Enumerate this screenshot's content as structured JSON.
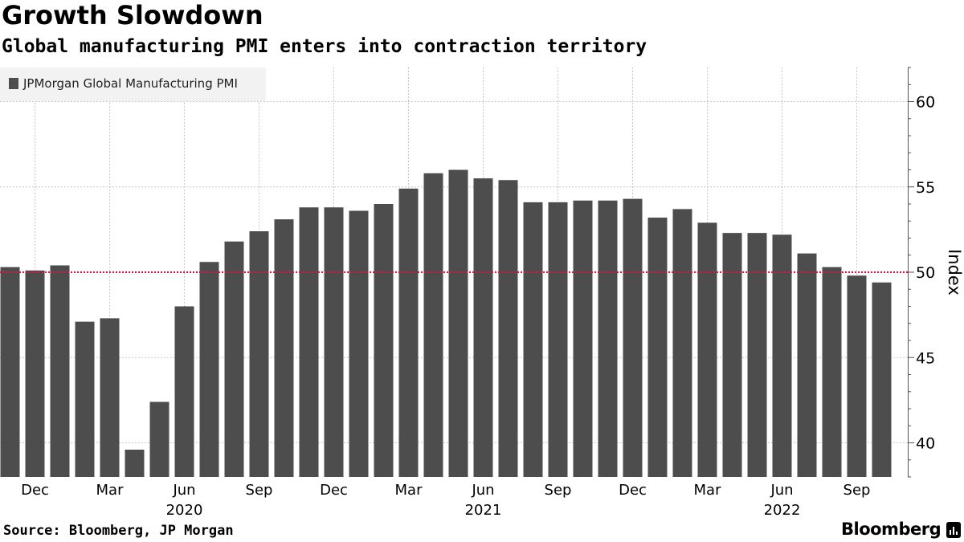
{
  "header": {
    "title": "Growth Slowdown",
    "subtitle": "Global manufacturing PMI enters into contraction territory"
  },
  "footer": {
    "source": "Source: Bloomberg, JP Morgan",
    "brand": "Bloomberg"
  },
  "colors": {
    "bar": "#4d4d4d",
    "reference_line": "#e0143c",
    "grid": "#c8c8c8",
    "legend_bg": "#f2f2f2"
  },
  "chart_data": {
    "type": "bar",
    "ylabel": "Index",
    "ylim": [
      38,
      62
    ],
    "yticks": [
      40,
      45,
      50,
      55,
      60
    ],
    "y_axis_side": "right",
    "grid": true,
    "legend_position": "top-left",
    "reference_line": {
      "value": 50,
      "style": "dotted"
    },
    "series": [
      {
        "name": "JPMorgan Global Manufacturing PMI",
        "periods": [
          "Nov 2019",
          "Dec 2019",
          "Jan 2020",
          "Feb 2020",
          "Mar 2020",
          "Apr 2020",
          "May 2020",
          "Jun 2020",
          "Jul 2020",
          "Aug 2020",
          "Sep 2020",
          "Oct 2020",
          "Nov 2020",
          "Dec 2020",
          "Jan 2021",
          "Feb 2021",
          "Mar 2021",
          "Apr 2021",
          "May 2021",
          "Jun 2021",
          "Jul 2021",
          "Aug 2021",
          "Sep 2021",
          "Oct 2021",
          "Nov 2021",
          "Dec 2021",
          "Jan 2022",
          "Feb 2022",
          "Mar 2022",
          "Apr 2022",
          "May 2022",
          "Jun 2022",
          "Jul 2022",
          "Aug 2022",
          "Sep 2022",
          "Oct 2022"
        ],
        "values": [
          50.3,
          50.1,
          50.4,
          47.1,
          47.3,
          39.6,
          42.4,
          48.0,
          50.6,
          51.8,
          52.4,
          53.1,
          53.8,
          53.8,
          53.6,
          54.0,
          54.9,
          55.8,
          56.0,
          55.5,
          55.4,
          54.1,
          54.1,
          54.2,
          54.2,
          54.3,
          53.2,
          53.7,
          52.9,
          52.3,
          52.3,
          52.2,
          51.1,
          50.3,
          49.8,
          49.4
        ]
      }
    ],
    "x_month_ticks": [
      {
        "label": "Dec",
        "index": 1
      },
      {
        "label": "Mar",
        "index": 4
      },
      {
        "label": "Jun",
        "index": 7
      },
      {
        "label": "Sep",
        "index": 10
      },
      {
        "label": "Dec",
        "index": 13
      },
      {
        "label": "Mar",
        "index": 16
      },
      {
        "label": "Jun",
        "index": 19
      },
      {
        "label": "Sep",
        "index": 22
      },
      {
        "label": "Dec",
        "index": 25
      },
      {
        "label": "Mar",
        "index": 28
      },
      {
        "label": "Jun",
        "index": 31
      },
      {
        "label": "Sep",
        "index": 34
      }
    ],
    "x_year_labels": [
      {
        "label": "2020",
        "index": 7
      },
      {
        "label": "2021",
        "index": 19
      },
      {
        "label": "2022",
        "index": 31
      }
    ]
  }
}
